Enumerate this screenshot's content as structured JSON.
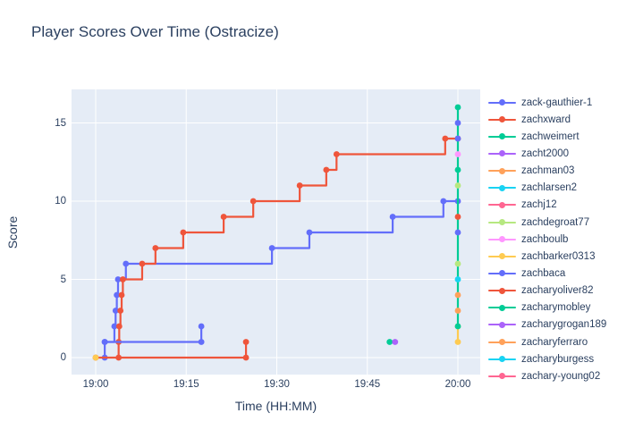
{
  "title": "Player Scores Over Time (Ostracize)",
  "xaxis": {
    "title": "Time (HH:MM)"
  },
  "yaxis": {
    "title": "Score"
  },
  "colors": {
    "paper_background": "#FFFFFF",
    "plot_background": "#E5ECF6",
    "gridline": "#FFFFFF",
    "text": "#2a3f5f"
  },
  "legend": {
    "items": [
      {
        "label": "zack-gauthier-1",
        "color": "#636EFA"
      },
      {
        "label": "zachxward",
        "color": "#EF553B"
      },
      {
        "label": "zachweimert",
        "color": "#00CC96"
      },
      {
        "label": "zacht2000",
        "color": "#AB63FA"
      },
      {
        "label": "zachman03",
        "color": "#FFA15A"
      },
      {
        "label": "zachlarsen2",
        "color": "#19D3F3"
      },
      {
        "label": "zachj12",
        "color": "#FF6692"
      },
      {
        "label": "zachdegroat77",
        "color": "#B6E880"
      },
      {
        "label": "zachboulb",
        "color": "#FF97FF"
      },
      {
        "label": "zachbarker0313",
        "color": "#FECB52"
      },
      {
        "label": "zachbaca",
        "color": "#636EFA"
      },
      {
        "label": "zacharyoliver82",
        "color": "#EF553B"
      },
      {
        "label": "zacharymobley",
        "color": "#00CC96"
      },
      {
        "label": "zacharygrogan189",
        "color": "#AB63FA"
      },
      {
        "label": "zacharyferraro",
        "color": "#FFA15A"
      },
      {
        "label": "zacharyburgess",
        "color": "#19D3F3"
      },
      {
        "label": "zachary-young02",
        "color": "#FF6692"
      }
    ]
  },
  "chart_data": {
    "type": "line",
    "step_shape": "hv",
    "title": "Player Scores Over Time (Ostracize)",
    "xlabel": "Time (HH:MM)",
    "ylabel": "Score",
    "x_unit": "minutes after 19:00",
    "x_range_minutes": [
      -4,
      63.7
    ],
    "ylim": [
      -1.1,
      17.1
    ],
    "grid": true,
    "legend_position": "right",
    "x_ticks": [
      {
        "label": "19:00",
        "t": 0
      },
      {
        "label": "19:15",
        "t": 15
      },
      {
        "label": "19:30",
        "t": 30
      },
      {
        "label": "19:45",
        "t": 45
      },
      {
        "label": "20:00",
        "t": 60
      }
    ],
    "y_ticks": [
      {
        "label": "0",
        "s": 0
      },
      {
        "label": "5",
        "s": 5
      },
      {
        "label": "10",
        "s": 10
      },
      {
        "label": "15",
        "s": 15
      }
    ],
    "series": [
      {
        "name": "zack-gauthier-1",
        "color": "#636EFA",
        "points": [
          [
            1.5,
            0
          ],
          [
            1.5,
            1
          ],
          [
            3.1,
            2
          ],
          [
            3.3,
            3
          ],
          [
            3.5,
            4
          ],
          [
            3.7,
            5
          ],
          [
            5.0,
            6
          ],
          [
            29.2,
            7
          ],
          [
            35.4,
            8
          ],
          [
            49.2,
            9
          ],
          [
            57.6,
            10
          ],
          [
            60,
            10
          ]
        ]
      },
      {
        "name": "zachxward",
        "color": "#EF553B",
        "points": [
          [
            3.8,
            0
          ],
          [
            3.8,
            1
          ],
          [
            3.9,
            2
          ],
          [
            4.1,
            3
          ],
          [
            4.3,
            4
          ],
          [
            4.5,
            5
          ],
          [
            7.7,
            6
          ],
          [
            9.9,
            7
          ],
          [
            14.5,
            8
          ],
          [
            21.2,
            9
          ],
          [
            26.1,
            10
          ],
          [
            33.8,
            11
          ],
          [
            38.2,
            12
          ],
          [
            39.9,
            13
          ],
          [
            57.9,
            14
          ],
          [
            60,
            14
          ]
        ]
      },
      {
        "name": "zachbarker0313",
        "color": "#FECB52",
        "points": [
          [
            60,
            1
          ],
          [
            60,
            2
          ]
        ]
      },
      {
        "name": "zachbaca",
        "color": "#636EFA",
        "points": [
          [
            1.5,
            1
          ],
          [
            17.5,
            1
          ],
          [
            17.5,
            2
          ]
        ]
      },
      {
        "name": "zacharyoliver82",
        "color": "#EF553B",
        "points": [
          [
            0,
            0
          ],
          [
            24.9,
            0
          ],
          [
            24.9,
            1
          ]
        ]
      },
      {
        "name": "zachweimert",
        "color": "#00CC96",
        "points": [
          [
            60,
            2
          ],
          [
            60,
            16
          ]
        ]
      }
    ],
    "point_markers": [
      {
        "t": 60,
        "s": 15,
        "color": "#636EFA"
      },
      {
        "t": 60,
        "s": 14,
        "color": "#636EFA"
      },
      {
        "t": 60,
        "s": 13,
        "color": "#FF97FF"
      },
      {
        "t": 60,
        "s": 12,
        "color": "#00CC96"
      },
      {
        "t": 60,
        "s": 11,
        "color": "#B6E880"
      },
      {
        "t": 60,
        "s": 9,
        "color": "#EF553B"
      },
      {
        "t": 60,
        "s": 8,
        "color": "#636EFA"
      },
      {
        "t": 60,
        "s": 6,
        "color": "#B6E880"
      },
      {
        "t": 60,
        "s": 5,
        "color": "#19D3F3"
      },
      {
        "t": 60,
        "s": 4,
        "color": "#FFA15A"
      },
      {
        "t": 60,
        "s": 3,
        "color": "#FFA15A"
      },
      {
        "t": 48.7,
        "s": 1,
        "color": "#00CC96"
      },
      {
        "t": 49.6,
        "s": 1,
        "color": "#AB63FA"
      },
      {
        "t": 0,
        "s": 0,
        "color": "#FECB52"
      }
    ]
  }
}
